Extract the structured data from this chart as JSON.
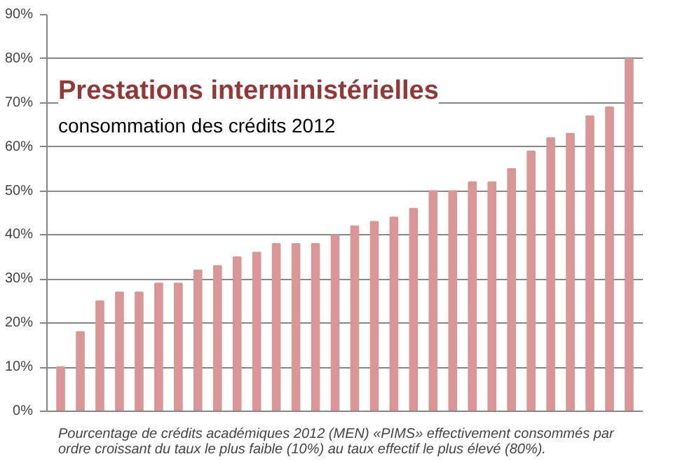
{
  "chart_data": {
    "type": "bar",
    "title": "Prestations interministérielles",
    "subtitle": "consommation des crédits 2012",
    "categories": [
      null,
      null,
      null,
      null,
      null,
      null,
      null,
      null,
      null,
      null,
      null,
      null,
      null,
      null,
      null,
      null,
      null,
      null,
      null,
      null,
      null,
      null,
      null,
      null,
      null,
      null,
      null,
      null,
      null,
      null
    ],
    "values": [
      10,
      18,
      25,
      27,
      27,
      29,
      29,
      32,
      33,
      35,
      36,
      38,
      38,
      38,
      40,
      42,
      43,
      44,
      46,
      50,
      50,
      52,
      52,
      55,
      59,
      62,
      63,
      67,
      69,
      80
    ],
    "color": "#d99694",
    "ylim": [
      0,
      90
    ],
    "yticks": [
      {
        "value": 0,
        "label": "0%"
      },
      {
        "value": 10,
        "label": "10%"
      },
      {
        "value": 20,
        "label": "20%"
      },
      {
        "value": 30,
        "label": "30%"
      },
      {
        "value": 40,
        "label": "40%"
      },
      {
        "value": 50,
        "label": "50%"
      },
      {
        "value": 60,
        "label": "60%"
      },
      {
        "value": 70,
        "label": "70%"
      },
      {
        "value": 80,
        "label": "80%"
      },
      {
        "value": 90,
        "label": "90%"
      }
    ],
    "grid": "y",
    "tick_labels": "y",
    "annotations": [
      "Pourcentage de crédits académiques 2012 (MEN) «PIMS» effectivement  consommés par ordre croissant du taux le plus faible (10%) au taux effectif le plus élevé (80%)."
    ]
  }
}
